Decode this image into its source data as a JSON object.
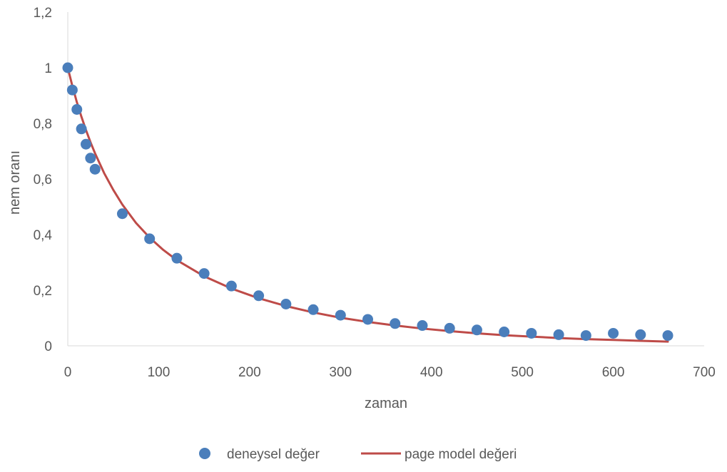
{
  "chart_data": {
    "type": "scatter",
    "title": "",
    "xlabel": "zaman",
    "ylabel": "nem oranı",
    "xlim": [
      0,
      700
    ],
    "ylim": [
      0,
      1.2
    ],
    "x_ticks": [
      0,
      100,
      200,
      300,
      400,
      500,
      600,
      700
    ],
    "x_tick_labels": [
      "0",
      "100",
      "200",
      "300",
      "400",
      "500",
      "600",
      "700"
    ],
    "y_ticks": [
      0,
      0.2,
      0.4,
      0.6,
      0.8,
      1.0,
      1.2
    ],
    "y_tick_labels": [
      "0",
      "0,2",
      "0,4",
      "0,6",
      "0,8",
      "1",
      "1,2"
    ],
    "grid": false,
    "legend_position": "bottom",
    "series": [
      {
        "name": "deneysel değer",
        "kind": "scatter",
        "color": "#4a7ebb",
        "x": [
          0,
          5,
          10,
          15,
          20,
          25,
          30,
          60,
          90,
          120,
          150,
          180,
          210,
          240,
          270,
          300,
          330,
          360,
          390,
          420,
          450,
          480,
          510,
          540,
          570,
          600,
          630,
          660
        ],
        "y": [
          1.0,
          0.92,
          0.85,
          0.78,
          0.725,
          0.675,
          0.635,
          0.475,
          0.385,
          0.315,
          0.26,
          0.215,
          0.18,
          0.15,
          0.13,
          0.11,
          0.095,
          0.08,
          0.073,
          0.063,
          0.057,
          0.05,
          0.045,
          0.04,
          0.037,
          0.045,
          0.04,
          0.037
        ]
      },
      {
        "name": "page model değeri",
        "kind": "line",
        "color": "#be4b48",
        "x": [
          0,
          5,
          10,
          15,
          20,
          25,
          30,
          40,
          50,
          60,
          75,
          90,
          105,
          120,
          150,
          180,
          210,
          240,
          270,
          300,
          330,
          360,
          390,
          420,
          450,
          480,
          510,
          540,
          570,
          600,
          630,
          660
        ],
        "y": [
          1.0,
          0.935,
          0.876,
          0.824,
          0.776,
          0.732,
          0.692,
          0.621,
          0.561,
          0.508,
          0.442,
          0.389,
          0.345,
          0.308,
          0.25,
          0.206,
          0.171,
          0.143,
          0.12,
          0.101,
          0.086,
          0.073,
          0.062,
          0.053,
          0.045,
          0.038,
          0.033,
          0.028,
          0.024,
          0.021,
          0.018,
          0.015
        ]
      }
    ]
  }
}
